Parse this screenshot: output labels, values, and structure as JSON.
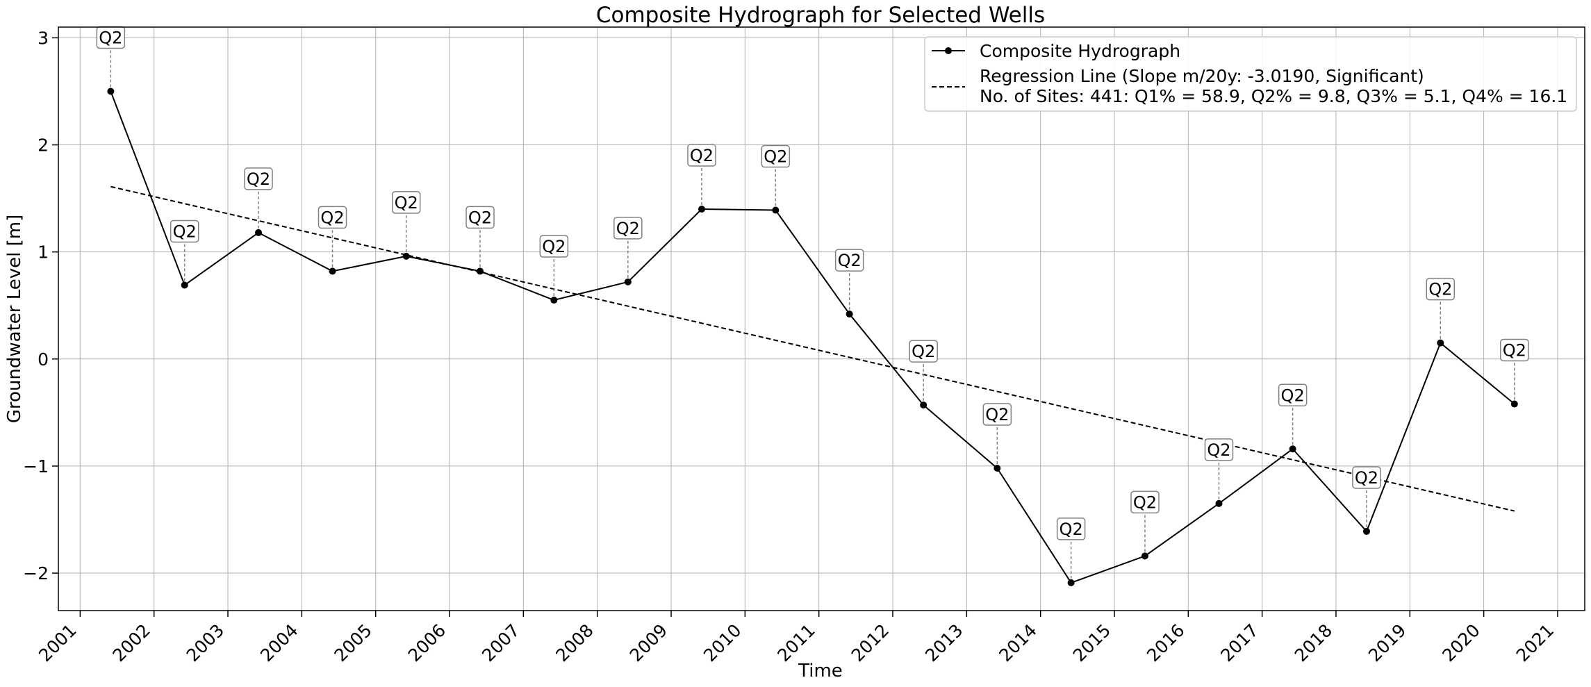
{
  "chart_data": {
    "type": "line",
    "title": "Composite Hydrograph for Selected Wells",
    "xlabel": "Time",
    "ylabel": "Groundwater Level [m]",
    "xlim": [
      "2000-09-15",
      "2021-05-15"
    ],
    "ylim": [
      -2.35,
      3.1
    ],
    "grid": true,
    "legend_position": "top-right",
    "x_ticks": [
      "2001",
      "2002",
      "2003",
      "2004",
      "2005",
      "2006",
      "2007",
      "2008",
      "2009",
      "2010",
      "2011",
      "2012",
      "2013",
      "2014",
      "2015",
      "2016",
      "2017",
      "2018",
      "2019",
      "2020",
      "2021"
    ],
    "y_ticks": [
      3,
      2,
      1,
      0,
      -1,
      -2
    ],
    "y_tick_labels": [
      "3",
      "2",
      "1",
      "0",
      "−1",
      "−2"
    ],
    "series": [
      {
        "name": "Composite Hydrograph",
        "style": "solid-markers",
        "color": "#000000",
        "x": [
          "2001-06-01",
          "2002-06-01",
          "2003-06-01",
          "2004-06-01",
          "2005-06-01",
          "2006-06-01",
          "2007-06-01",
          "2008-06-01",
          "2009-06-01",
          "2010-06-01",
          "2011-06-01",
          "2012-06-01",
          "2013-06-01",
          "2014-06-01",
          "2015-06-01",
          "2016-06-01",
          "2017-06-01",
          "2018-06-01",
          "2019-06-01",
          "2020-06-01"
        ],
        "y": [
          2.5,
          0.69,
          1.18,
          0.82,
          0.96,
          0.82,
          0.55,
          0.72,
          1.4,
          1.39,
          0.42,
          -0.43,
          -1.02,
          -2.09,
          -1.84,
          -1.35,
          -0.84,
          -1.61,
          0.15,
          -0.42
        ],
        "point_labels": [
          "Q2",
          "Q2",
          "Q2",
          "Q2",
          "Q2",
          "Q2",
          "Q2",
          "Q2",
          "Q2",
          "Q2",
          "Q2",
          "Q2",
          "Q2",
          "Q2",
          "Q2",
          "Q2",
          "Q2",
          "Q2",
          "Q2",
          "Q2"
        ]
      },
      {
        "name": "Regression Line (Slope m/20y: -3.0190, Significant)",
        "style": "dashed",
        "color": "#000000",
        "x": [
          "2001-06-01",
          "2020-06-01"
        ],
        "y": [
          1.61,
          -1.42
        ]
      }
    ],
    "legend_note": "No. of Sites: 441: Q1% = 58.9, Q2% = 9.8, Q3% = 5.1, Q4% = 16.1"
  }
}
